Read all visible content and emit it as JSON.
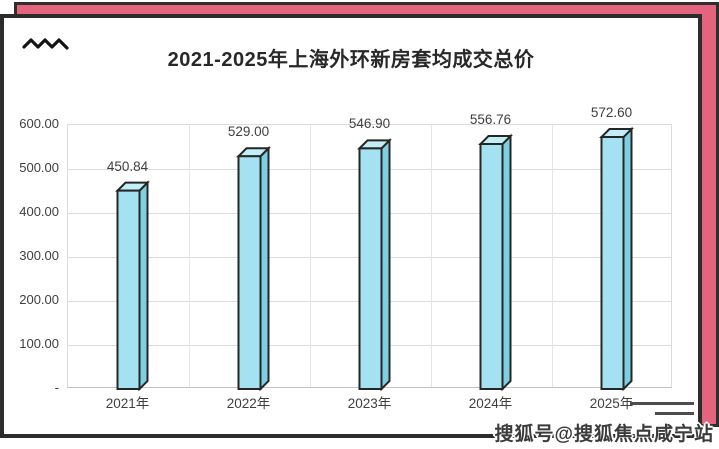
{
  "header": {
    "title": "2021-2025年上海外环新房套均成交总价"
  },
  "page": {
    "watermark": "搜狐号@搜狐焦点咸宁站"
  },
  "chart_data": {
    "type": "bar",
    "title": "2021-2025年上海外环新房套均成交总价",
    "categories": [
      "2021年",
      "2022年",
      "2023年",
      "2024年",
      "2025年"
    ],
    "values": [
      450.84,
      529.0,
      546.9,
      556.76,
      572.6
    ],
    "value_labels": [
      "450.84",
      "529.00",
      "546.90",
      "556.76",
      "572.60"
    ],
    "ytick_labels": [
      "600.00",
      "500.00",
      "400.00",
      "300.00",
      "200.00",
      "100.00",
      "-"
    ],
    "ylim": [
      0,
      600
    ],
    "ytick_step": 100,
    "xlabel": "",
    "ylabel": "",
    "grid": true,
    "legend": "none",
    "bar_style": "3d-cylinder-box"
  },
  "colors": {
    "background_panel": "#e4647e",
    "panel_border": "#2e2e2e",
    "bar_front": "#a5e2f1",
    "bar_top": "#c2eef8",
    "bar_side": "#7fcfe3",
    "bar_outline": "#262626",
    "gridline": "#dcdcdc",
    "axis_text": "#3f3f3f",
    "title_text": "#282828"
  },
  "icons": {
    "zigzag": "zigzag-wave"
  }
}
